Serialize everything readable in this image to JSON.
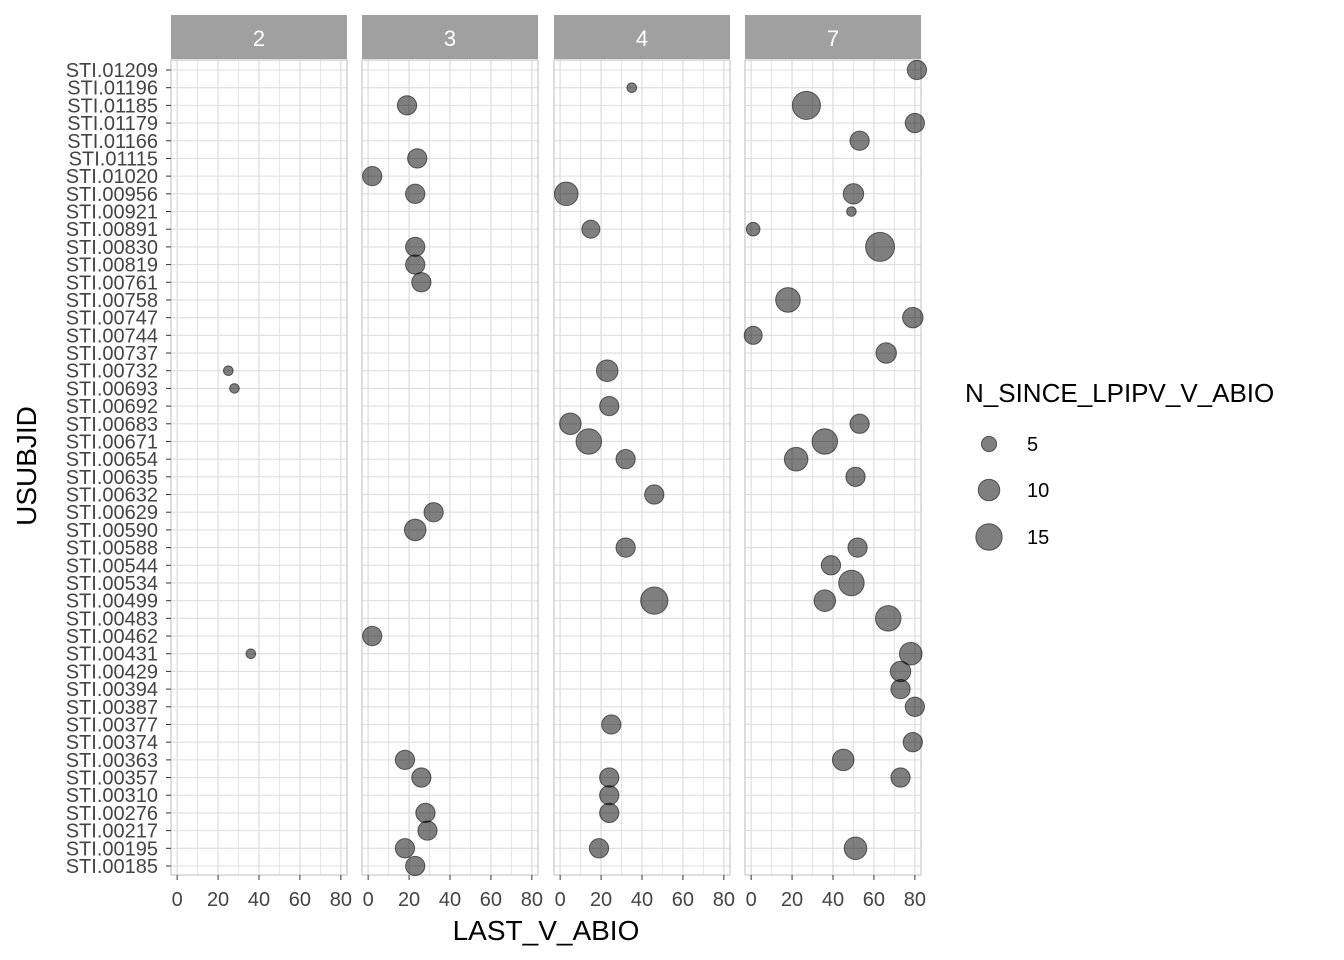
{
  "chart_data": {
    "type": "scatter",
    "facet_labels": [
      "2",
      "3",
      "4",
      "7"
    ],
    "xlabel": "LAST_V_ABIO",
    "ylabel": "USUBJID",
    "xlim": [
      -3,
      83
    ],
    "xticks": [
      0,
      20,
      40,
      60,
      80
    ],
    "grid": true,
    "legend": {
      "title": "N_SINCE_LPIPV_V_ABIO",
      "position": "right",
      "entries": [
        5,
        10,
        15
      ]
    },
    "subjects": [
      "STI.01209",
      "STI.01196",
      "STI.01185",
      "STI.01179",
      "STI.01166",
      "STI.01115",
      "STI.01020",
      "STI.00956",
      "STI.00921",
      "STI.00891",
      "STI.00830",
      "STI.00819",
      "STI.00761",
      "STI.00758",
      "STI.00747",
      "STI.00744",
      "STI.00737",
      "STI.00732",
      "STI.00693",
      "STI.00692",
      "STI.00683",
      "STI.00671",
      "STI.00654",
      "STI.00635",
      "STI.00632",
      "STI.00629",
      "STI.00590",
      "STI.00588",
      "STI.00544",
      "STI.00534",
      "STI.00499",
      "STI.00483",
      "STI.00462",
      "STI.00431",
      "STI.00429",
      "STI.00394",
      "STI.00387",
      "STI.00377",
      "STI.00374",
      "STI.00363",
      "STI.00357",
      "STI.00310",
      "STI.00276",
      "STI.00217",
      "STI.00195",
      "STI.00185"
    ],
    "points": [
      {
        "panel": "2",
        "subject": "STI.00732",
        "x": 25,
        "size": 2
      },
      {
        "panel": "2",
        "subject": "STI.00693",
        "x": 28,
        "size": 2
      },
      {
        "panel": "2",
        "subject": "STI.00431",
        "x": 36,
        "size": 2
      },
      {
        "panel": "3",
        "subject": "STI.01185",
        "x": 19,
        "size": 8
      },
      {
        "panel": "3",
        "subject": "STI.01115",
        "x": 24,
        "size": 8
      },
      {
        "panel": "3",
        "subject": "STI.01020",
        "x": 2,
        "size": 8
      },
      {
        "panel": "3",
        "subject": "STI.00956",
        "x": 23,
        "size": 8
      },
      {
        "panel": "3",
        "subject": "STI.00830",
        "x": 23,
        "size": 8
      },
      {
        "panel": "3",
        "subject": "STI.00819",
        "x": 23,
        "size": 8
      },
      {
        "panel": "3",
        "subject": "STI.00761",
        "x": 26,
        "size": 8
      },
      {
        "panel": "3",
        "subject": "STI.00629",
        "x": 32,
        "size": 8
      },
      {
        "panel": "3",
        "subject": "STI.00590",
        "x": 23,
        "size": 10
      },
      {
        "panel": "3",
        "subject": "STI.00462",
        "x": 2,
        "size": 8
      },
      {
        "panel": "3",
        "subject": "STI.00363",
        "x": 18,
        "size": 8
      },
      {
        "panel": "3",
        "subject": "STI.00357",
        "x": 26,
        "size": 8
      },
      {
        "panel": "3",
        "subject": "STI.00276",
        "x": 28,
        "size": 8
      },
      {
        "panel": "3",
        "subject": "STI.00217",
        "x": 29,
        "size": 8
      },
      {
        "panel": "3",
        "subject": "STI.00195",
        "x": 18,
        "size": 8
      },
      {
        "panel": "3",
        "subject": "STI.00185",
        "x": 23,
        "size": 8
      },
      {
        "panel": "4",
        "subject": "STI.01196",
        "x": 35,
        "size": 2
      },
      {
        "panel": "4",
        "subject": "STI.00956",
        "x": 3,
        "size": 12
      },
      {
        "panel": "4",
        "subject": "STI.00891",
        "x": 15,
        "size": 7
      },
      {
        "panel": "4",
        "subject": "STI.00732",
        "x": 23,
        "size": 10
      },
      {
        "panel": "4",
        "subject": "STI.00692",
        "x": 24,
        "size": 8
      },
      {
        "panel": "4",
        "subject": "STI.00683",
        "x": 5,
        "size": 10
      },
      {
        "panel": "4",
        "subject": "STI.00671",
        "x": 14,
        "size": 14
      },
      {
        "panel": "4",
        "subject": "STI.00654",
        "x": 32,
        "size": 8
      },
      {
        "panel": "4",
        "subject": "STI.00632",
        "x": 46,
        "size": 8
      },
      {
        "panel": "4",
        "subject": "STI.00588",
        "x": 32,
        "size": 8
      },
      {
        "panel": "4",
        "subject": "STI.00499",
        "x": 46,
        "size": 16
      },
      {
        "panel": "4",
        "subject": "STI.00377",
        "x": 25,
        "size": 8
      },
      {
        "panel": "4",
        "subject": "STI.00357",
        "x": 24,
        "size": 8
      },
      {
        "panel": "4",
        "subject": "STI.00310",
        "x": 24,
        "size": 8
      },
      {
        "panel": "4",
        "subject": "STI.00276",
        "x": 24,
        "size": 8
      },
      {
        "panel": "4",
        "subject": "STI.00195",
        "x": 19,
        "size": 8
      },
      {
        "panel": "7",
        "subject": "STI.01209",
        "x": 81,
        "size": 8
      },
      {
        "panel": "7",
        "subject": "STI.01185",
        "x": 27,
        "size": 17
      },
      {
        "panel": "7",
        "subject": "STI.01179",
        "x": 80,
        "size": 8
      },
      {
        "panel": "7",
        "subject": "STI.01166",
        "x": 53,
        "size": 8
      },
      {
        "panel": "7",
        "subject": "STI.00956",
        "x": 50,
        "size": 9
      },
      {
        "panel": "7",
        "subject": "STI.00921",
        "x": 49,
        "size": 2
      },
      {
        "panel": "7",
        "subject": "STI.00891",
        "x": 1,
        "size": 4
      },
      {
        "panel": "7",
        "subject": "STI.00830",
        "x": 63,
        "size": 18
      },
      {
        "panel": "7",
        "subject": "STI.00758",
        "x": 18,
        "size": 13
      },
      {
        "panel": "7",
        "subject": "STI.00747",
        "x": 79,
        "size": 9
      },
      {
        "panel": "7",
        "subject": "STI.00744",
        "x": 1,
        "size": 7
      },
      {
        "panel": "7",
        "subject": "STI.00737",
        "x": 66,
        "size": 9
      },
      {
        "panel": "7",
        "subject": "STI.00683",
        "x": 53,
        "size": 8
      },
      {
        "panel": "7",
        "subject": "STI.00671",
        "x": 36,
        "size": 14
      },
      {
        "panel": "7",
        "subject": "STI.00654",
        "x": 22,
        "size": 12
      },
      {
        "panel": "7",
        "subject": "STI.00635",
        "x": 51,
        "size": 8
      },
      {
        "panel": "7",
        "subject": "STI.00588",
        "x": 52,
        "size": 8
      },
      {
        "panel": "7",
        "subject": "STI.00544",
        "x": 39,
        "size": 8
      },
      {
        "panel": "7",
        "subject": "STI.00534",
        "x": 49,
        "size": 14
      },
      {
        "panel": "7",
        "subject": "STI.00499",
        "x": 36,
        "size": 10
      },
      {
        "panel": "7",
        "subject": "STI.00483",
        "x": 67,
        "size": 14
      },
      {
        "panel": "7",
        "subject": "STI.00431",
        "x": 78,
        "size": 11
      },
      {
        "panel": "7",
        "subject": "STI.00429",
        "x": 73,
        "size": 9
      },
      {
        "panel": "7",
        "subject": "STI.00394",
        "x": 73,
        "size": 8
      },
      {
        "panel": "7",
        "subject": "STI.00387",
        "x": 80,
        "size": 8
      },
      {
        "panel": "7",
        "subject": "STI.00374",
        "x": 79,
        "size": 8
      },
      {
        "panel": "7",
        "subject": "STI.00363",
        "x": 45,
        "size": 10
      },
      {
        "panel": "7",
        "subject": "STI.00357",
        "x": 73,
        "size": 8
      },
      {
        "panel": "7",
        "subject": "STI.00195",
        "x": 51,
        "size": 11
      }
    ]
  }
}
